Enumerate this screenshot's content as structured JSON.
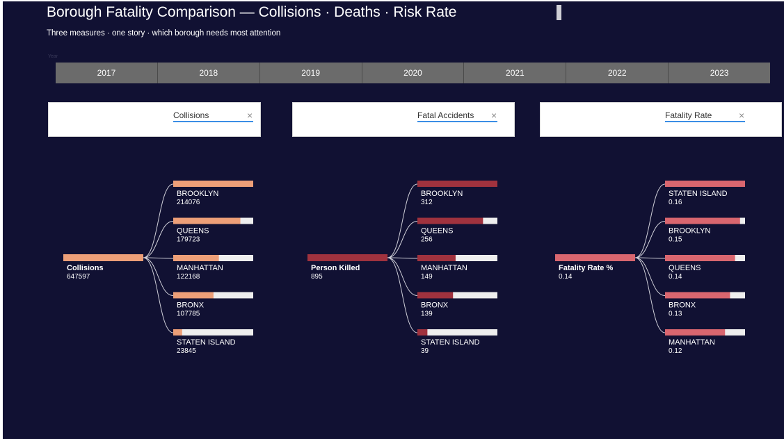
{
  "header": {
    "title": "Borough Fatality Comparison — Collisions · Deaths · Risk Rate",
    "subtitle": "Three measures · one story · which borough needs most attention",
    "year_label": "Year"
  },
  "years": [
    "2017",
    "2018",
    "2019",
    "2020",
    "2021",
    "2022",
    "2023"
  ],
  "filters": [
    {
      "label": "Collisions",
      "close": "×"
    },
    {
      "label": "Fatal Accidents",
      "close": "×"
    },
    {
      "label": "Fatality Rate",
      "close": "×"
    }
  ],
  "colors": {
    "background": "#111133",
    "collisions": "#ed9f78",
    "deaths": "#a0323e",
    "rate": "#d9666f",
    "track": "#eeeeee"
  },
  "chart_data": [
    {
      "type": "bar",
      "root": {
        "label": "Collisions",
        "value": "647597"
      },
      "categories": [
        "BROOKLYN",
        "QUEENS",
        "MANHATTAN",
        "BRONX",
        "STATEN ISLAND"
      ],
      "values": [
        214076,
        179723,
        122168,
        107785,
        23845
      ],
      "value_labels": [
        "214076",
        "179723",
        "122168",
        "107785",
        "23845"
      ],
      "max": 214076
    },
    {
      "type": "bar",
      "root": {
        "label": "Person Killed",
        "value": "895"
      },
      "categories": [
        "BROOKLYN",
        "QUEENS",
        "MANHATTAN",
        "BRONX",
        "STATEN ISLAND"
      ],
      "values": [
        312,
        256,
        149,
        139,
        39
      ],
      "value_labels": [
        "312",
        "256",
        "149",
        "139",
        "39"
      ],
      "max": 312
    },
    {
      "type": "bar",
      "root": {
        "label": "Fatality Rate %",
        "value": "0.14"
      },
      "categories": [
        "STATEN ISLAND",
        "BROOKLYN",
        "QUEENS",
        "BRONX",
        "MANHATTAN"
      ],
      "values": [
        0.16,
        0.15,
        0.14,
        0.13,
        0.12
      ],
      "value_labels": [
        "0.16",
        "0.15",
        "0.14",
        "0.13",
        "0.12"
      ],
      "max": 0.16
    }
  ]
}
